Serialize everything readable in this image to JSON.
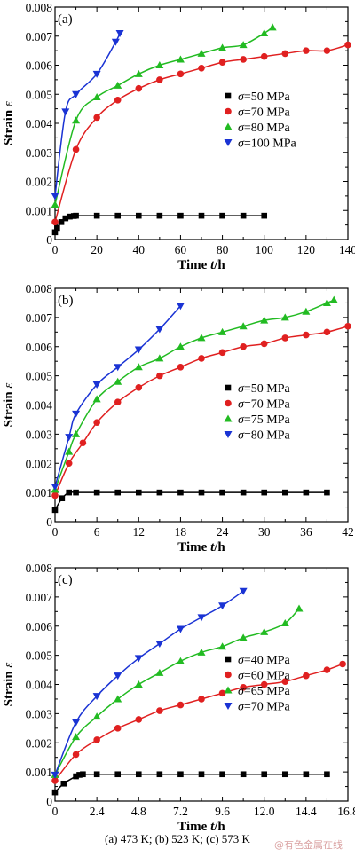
{
  "caption": "(a) 473 K; (b) 523 K; (c) 573 K",
  "watermark": "@有色金属在线",
  "chart_data": [
    {
      "type": "line",
      "panel_label": "(a)",
      "xlabel_main": "Time ",
      "xlabel_var": "t",
      "xlabel_unit": "/h",
      "ylabel_main": "Strain ",
      "ylabel_var": "ε",
      "xlim": [
        0,
        140
      ],
      "ylim": [
        0,
        0.008
      ],
      "xticks": [
        0,
        20,
        40,
        60,
        80,
        100,
        120,
        140
      ],
      "xtick_labels": [
        "0",
        "20",
        "40",
        "60",
        "80",
        "100",
        "120",
        "140"
      ],
      "yticks": [
        0,
        0.001,
        0.002,
        0.003,
        0.004,
        0.005,
        0.006,
        0.007,
        0.008
      ],
      "ytick_labels": [
        "0",
        "0.001",
        "0.002",
        "0.003",
        "0.004",
        "0.005",
        "0.006",
        "0.007",
        "0.008"
      ],
      "legend_position": "center-right",
      "series": [
        {
          "label": "=50 MPa",
          "marker": "square",
          "color": "#000000",
          "x": [
            0,
            1,
            3,
            5,
            7,
            9,
            10,
            20,
            30,
            40,
            50,
            60,
            70,
            80,
            90,
            100
          ],
          "y": [
            0.00025,
            0.0004,
            0.0006,
            0.00073,
            0.00079,
            0.00081,
            0.00082,
            0.00082,
            0.00082,
            0.00082,
            0.00082,
            0.00082,
            0.00082,
            0.00082,
            0.00082,
            0.00082
          ]
        },
        {
          "label": "=70 MPa",
          "marker": "circle",
          "color": "#e02020",
          "x": [
            0,
            10,
            20,
            30,
            40,
            50,
            60,
            70,
            80,
            90,
            100,
            110,
            120,
            130,
            140
          ],
          "y": [
            0.0006,
            0.0031,
            0.0042,
            0.0048,
            0.0052,
            0.0055,
            0.0057,
            0.0059,
            0.0061,
            0.0062,
            0.0063,
            0.0064,
            0.0065,
            0.0065,
            0.0067
          ]
        },
        {
          "label": "=80 MPa",
          "marker": "triangle-up",
          "color": "#22bb22",
          "x": [
            0,
            10,
            20,
            30,
            40,
            50,
            60,
            70,
            80,
            90,
            100,
            104
          ],
          "y": [
            0.0012,
            0.0041,
            0.0049,
            0.0053,
            0.0057,
            0.006,
            0.0062,
            0.0064,
            0.0066,
            0.0067,
            0.0071,
            0.0073
          ]
        },
        {
          "label": "=100 MPa",
          "marker": "triangle-down",
          "color": "#1a33d4",
          "x": [
            0,
            5,
            10,
            20,
            29,
            31
          ],
          "y": [
            0.0015,
            0.0044,
            0.005,
            0.0057,
            0.0068,
            0.0071
          ]
        }
      ]
    },
    {
      "type": "line",
      "panel_label": "(b)",
      "xlabel_main": "Time ",
      "xlabel_var": "t",
      "xlabel_unit": "/h",
      "ylabel_main": "Strain ",
      "ylabel_var": "ε",
      "xlim": [
        0,
        42
      ],
      "ylim": [
        0,
        0.008
      ],
      "xticks": [
        0,
        6,
        12,
        18,
        24,
        30,
        36,
        42
      ],
      "xtick_labels": [
        "0",
        "6",
        "12",
        "18",
        "24",
        "30",
        "36",
        "42"
      ],
      "yticks": [
        0,
        0.001,
        0.002,
        0.003,
        0.004,
        0.005,
        0.006,
        0.007,
        0.008
      ],
      "ytick_labels": [
        "0",
        "0.001",
        "0.002",
        "0.003",
        "0.004",
        "0.005",
        "0.006",
        "0.007",
        "0.008"
      ],
      "legend_position": "center-right",
      "series": [
        {
          "label": "=50 MPa",
          "marker": "square",
          "color": "#000000",
          "x": [
            0,
            1,
            2,
            3,
            6,
            9,
            12,
            15,
            18,
            21,
            24,
            27,
            30,
            33,
            36,
            39
          ],
          "y": [
            0.0004,
            0.0008,
            0.001,
            0.001,
            0.001,
            0.001,
            0.001,
            0.001,
            0.001,
            0.001,
            0.001,
            0.001,
            0.001,
            0.001,
            0.001,
            0.001
          ]
        },
        {
          "label": "=70 MPa",
          "marker": "circle",
          "color": "#e02020",
          "x": [
            0,
            2,
            4,
            6,
            9,
            12,
            15,
            18,
            21,
            24,
            27,
            30,
            33,
            36,
            39,
            42
          ],
          "y": [
            0.0009,
            0.002,
            0.0027,
            0.0034,
            0.0041,
            0.0046,
            0.005,
            0.0053,
            0.0056,
            0.0058,
            0.006,
            0.0061,
            0.0063,
            0.0064,
            0.0065,
            0.0067
          ]
        },
        {
          "label": "=75 MPa",
          "marker": "triangle-up",
          "color": "#22bb22",
          "x": [
            0,
            2,
            3,
            6,
            9,
            12,
            15,
            18,
            21,
            24,
            27,
            30,
            33,
            36,
            39,
            40
          ],
          "y": [
            0.0011,
            0.0024,
            0.003,
            0.0042,
            0.0048,
            0.0053,
            0.0056,
            0.006,
            0.0063,
            0.0065,
            0.0067,
            0.0069,
            0.007,
            0.0072,
            0.0075,
            0.0076
          ]
        },
        {
          "label": "=80 MPa",
          "marker": "triangle-down",
          "color": "#1a33d4",
          "x": [
            0,
            2,
            3,
            6,
            9,
            12,
            15,
            18
          ],
          "y": [
            0.0012,
            0.0029,
            0.0037,
            0.0047,
            0.0053,
            0.0059,
            0.0066,
            0.0074
          ]
        }
      ]
    },
    {
      "type": "line",
      "panel_label": "(c)",
      "xlabel_main": "Time ",
      "xlabel_var": "t",
      "xlabel_unit": "/h",
      "ylabel_main": "Strain ",
      "ylabel_var": "ε",
      "xlim": [
        0,
        16.8
      ],
      "ylim": [
        0,
        0.008
      ],
      "xticks": [
        0,
        2.4,
        4.8,
        7.2,
        9.6,
        12.0,
        14.4,
        16.8
      ],
      "xtick_labels": [
        "0",
        "2.4",
        "4.8",
        "7.2",
        "9.6",
        "12.0",
        "14.4",
        "16.8"
      ],
      "yticks": [
        0,
        0.001,
        0.002,
        0.003,
        0.004,
        0.005,
        0.006,
        0.007,
        0.008
      ],
      "ytick_labels": [
        "0",
        "0.001",
        "0.002",
        "0.003",
        "0.004",
        "0.005",
        "0.006",
        "0.007",
        "0.008"
      ],
      "legend_position": "center-right",
      "series": [
        {
          "label": "=40 MPa",
          "marker": "square",
          "color": "#000000",
          "x": [
            0,
            0.5,
            1.2,
            1.4,
            1.6,
            2.4,
            3.6,
            4.8,
            6.0,
            7.2,
            8.4,
            9.6,
            10.8,
            12.0,
            13.2,
            14.4,
            15.6
          ],
          "y": [
            0.0003,
            0.0006,
            0.00085,
            0.0009,
            0.00092,
            0.00092,
            0.00092,
            0.00092,
            0.00092,
            0.00092,
            0.00092,
            0.00092,
            0.00092,
            0.00092,
            0.00092,
            0.00092,
            0.00092
          ]
        },
        {
          "label": "=60 MPa",
          "marker": "circle",
          "color": "#e02020",
          "x": [
            0,
            1.2,
            2.4,
            3.6,
            4.8,
            6.0,
            7.2,
            8.4,
            9.6,
            10.8,
            12.0,
            13.2,
            14.4,
            15.6,
            16.5
          ],
          "y": [
            0.0007,
            0.0016,
            0.0021,
            0.0025,
            0.0028,
            0.0031,
            0.0033,
            0.0035,
            0.0037,
            0.0039,
            0.004,
            0.0041,
            0.0043,
            0.0045,
            0.0047
          ]
        },
        {
          "label": "=65 MPa",
          "marker": "triangle-up",
          "color": "#22bb22",
          "x": [
            0,
            1.2,
            2.4,
            3.6,
            4.8,
            6.0,
            7.2,
            8.4,
            9.6,
            10.8,
            12.0,
            13.2,
            14.0
          ],
          "y": [
            0.0009,
            0.0022,
            0.0029,
            0.0035,
            0.004,
            0.0044,
            0.0048,
            0.0051,
            0.0053,
            0.0056,
            0.0058,
            0.0061,
            0.0066
          ]
        },
        {
          "label": "=70 MPa",
          "marker": "triangle-down",
          "color": "#1a33d4",
          "x": [
            0,
            1.2,
            2.4,
            3.6,
            4.8,
            6.0,
            7.2,
            8.4,
            9.6,
            10.8
          ],
          "y": [
            0.0009,
            0.0027,
            0.0036,
            0.0043,
            0.0049,
            0.0054,
            0.0059,
            0.0063,
            0.0067,
            0.0072
          ]
        }
      ]
    }
  ]
}
